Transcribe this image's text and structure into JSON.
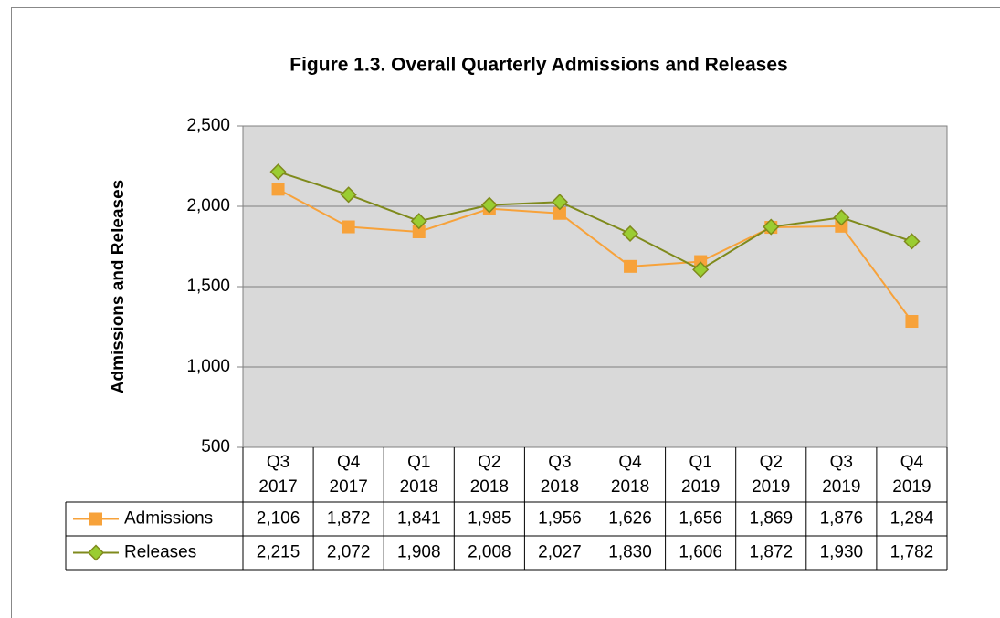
{
  "chart_data": {
    "type": "line",
    "title": "Figure 1.3. Overall Quarterly Admissions and Releases",
    "y_label": "Admissions and Releases",
    "categories": [
      "Q3 2017",
      "Q4 2017",
      "Q1 2018",
      "Q2 2018",
      "Q3 2018",
      "Q4 2018",
      "Q1 2019",
      "Q2 2019",
      "Q3 2019",
      "Q4 2019"
    ],
    "series": [
      {
        "name": "Admissions",
        "color": "#f7a23a",
        "marker": "square",
        "values": [
          2106,
          1872,
          1841,
          1985,
          1956,
          1626,
          1656,
          1869,
          1876,
          1284
        ],
        "value_labels": [
          "2,106",
          "1,872",
          "1,841",
          "1,985",
          "1,956",
          "1,626",
          "1,656",
          "1,869",
          "1,876",
          "1,284"
        ]
      },
      {
        "name": "Releases",
        "color": "#7f8a1c",
        "marker_fill": "#9acd32",
        "marker": "diamond",
        "values": [
          2215,
          2072,
          1908,
          2008,
          2027,
          1830,
          1606,
          1872,
          1930,
          1782
        ],
        "value_labels": [
          "2,215",
          "2,072",
          "1,908",
          "2,008",
          "2,027",
          "1,830",
          "1,606",
          "1,872",
          "1,930",
          "1,782"
        ]
      }
    ],
    "ylim": [
      500,
      2500
    ],
    "yticks": [
      500,
      {
        "value": 1000,
        "label": "1,000"
      },
      {
        "value": 1500,
        "label": "1,500"
      },
      {
        "value": 2000,
        "label": "2,000"
      },
      {
        "value": 2500,
        "label": "2,500"
      }
    ],
    "grid": true,
    "plot_background": "#d9d9d9",
    "data_table": true
  }
}
